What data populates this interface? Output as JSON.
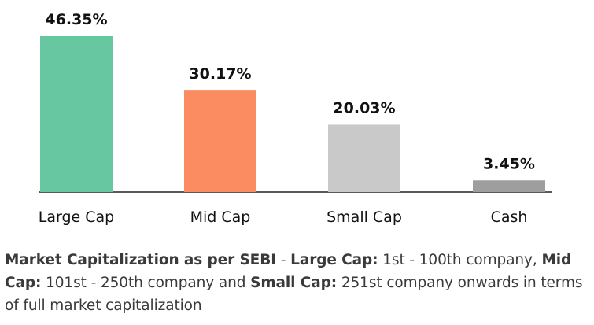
{
  "chart_data": {
    "type": "bar",
    "categories": [
      "Large Cap",
      "Mid Cap",
      "Small Cap",
      "Cash"
    ],
    "values": [
      46.35,
      30.17,
      20.03,
      3.45
    ],
    "data_labels": [
      "46.35%",
      "30.17%",
      "20.03%",
      "3.45%"
    ],
    "colors": [
      "#66c7a1",
      "#fb8c62",
      "#c9c9c9",
      "#9e9e9e"
    ],
    "axis_color": "#222222",
    "ylim": [
      0,
      46.35
    ],
    "grid": false,
    "legend": "none"
  },
  "note": {
    "seg1_bold": "Market Capitalization as per SEBI",
    "seg2": " - ",
    "seg3_bold": "Large Cap:",
    "seg4": " 1st - 100th company, ",
    "seg5_bold": "Mid Cap:",
    "seg6": " 101st - 250th company and ",
    "seg7_bold": "Small Cap:",
    "seg8": " 251st company onwards in terms of full market capitalization"
  }
}
